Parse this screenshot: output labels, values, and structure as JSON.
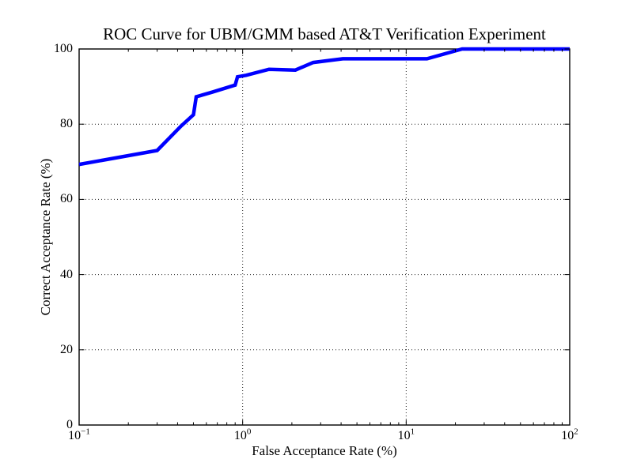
{
  "figure": {
    "background": "#ffffff",
    "axis_color": "#000000",
    "grid_color": "#222222"
  },
  "chart_data": {
    "type": "line",
    "title": "ROC Curve for UBM/GMM based AT&T Verification Experiment",
    "xlabel": "False Acceptance Rate (%)",
    "ylabel": "Correct Acceptance Rate (%)",
    "xscale": "log",
    "xlim": [
      0.1,
      100
    ],
    "ylim": [
      0,
      100
    ],
    "grid": "dotted, on major ticks only",
    "legend": "none",
    "x_major_ticks": [
      {
        "value": 0.1,
        "mantissa": "10",
        "exponent": "−1"
      },
      {
        "value": 1,
        "mantissa": "10",
        "exponent": "0"
      },
      {
        "value": 10,
        "mantissa": "10",
        "exponent": "1"
      },
      {
        "value": 100,
        "mantissa": "10",
        "exponent": "2"
      }
    ],
    "x_minor_subs": [
      2,
      3,
      4,
      5,
      6,
      7,
      8,
      9
    ],
    "y_major_ticks": [
      {
        "value": 0,
        "label": "0"
      },
      {
        "value": 20,
        "label": "20"
      },
      {
        "value": 40,
        "label": "40"
      },
      {
        "value": 60,
        "label": "60"
      },
      {
        "value": 80,
        "label": "80"
      },
      {
        "value": 100,
        "label": "100"
      }
    ],
    "series": [
      {
        "name": "ROC curve",
        "color": "#0000ff",
        "linewidth": 4.5,
        "points": [
          [
            0.1,
            69.3
          ],
          [
            0.3,
            73.0
          ],
          [
            0.42,
            79.5
          ],
          [
            0.5,
            82.5
          ],
          [
            0.52,
            87.3
          ],
          [
            0.65,
            88.5
          ],
          [
            0.9,
            90.4
          ],
          [
            0.93,
            92.6
          ],
          [
            1.05,
            93.0
          ],
          [
            1.45,
            94.6
          ],
          [
            2.1,
            94.4
          ],
          [
            2.7,
            96.4
          ],
          [
            4.1,
            97.4
          ],
          [
            13.4,
            97.4
          ],
          [
            22.0,
            100.0
          ],
          [
            100.0,
            100.0
          ]
        ]
      }
    ]
  }
}
